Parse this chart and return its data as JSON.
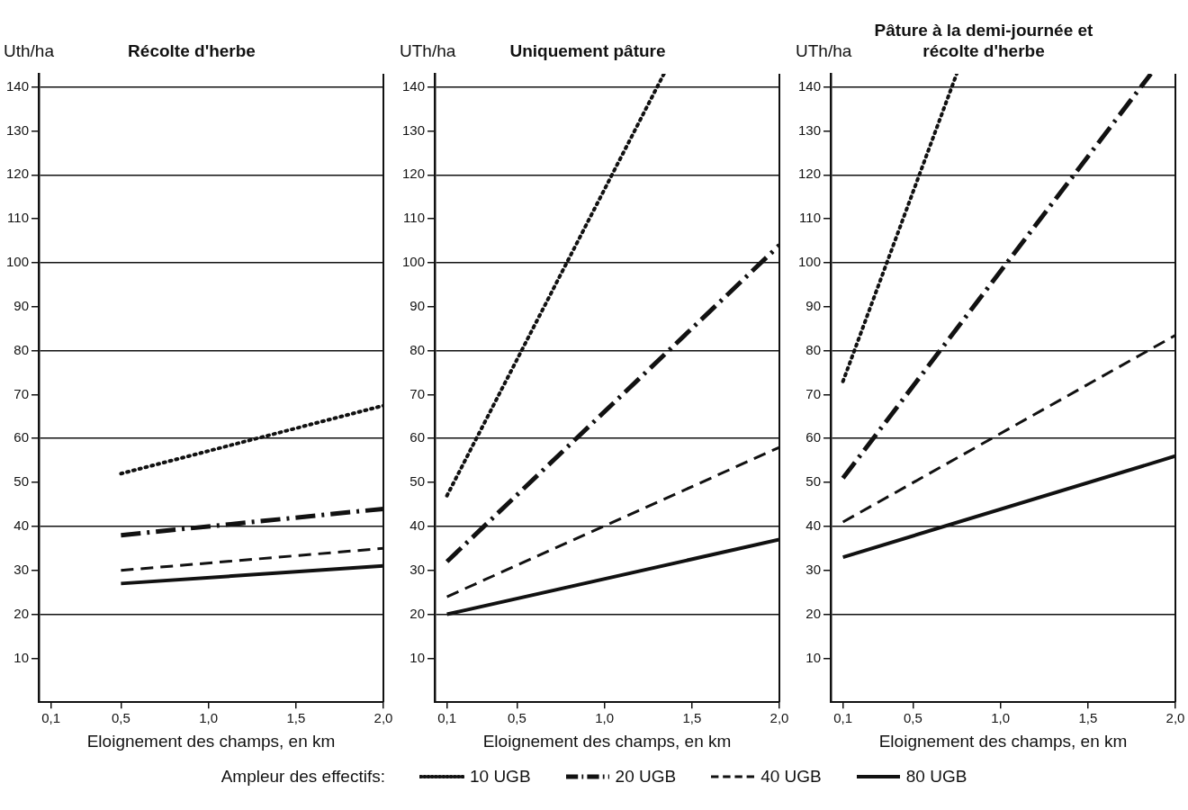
{
  "chart_data": [
    {
      "type": "line",
      "title": "Récolte d'herbe",
      "ylabel": "Uth/ha",
      "xlabel": "Eloignement des champs, en km",
      "xlim": [
        0.03,
        2.0
      ],
      "ylim": [
        0,
        143
      ],
      "xticks": [
        {
          "value": 0.1,
          "label": "0,1"
        },
        {
          "value": 0.5,
          "label": "0,5"
        },
        {
          "value": 1.0,
          "label": "1,0"
        },
        {
          "value": 1.5,
          "label": "1,5"
        },
        {
          "value": 2.0,
          "label": "2,0"
        }
      ],
      "yticks": [
        10,
        20,
        30,
        40,
        50,
        60,
        70,
        80,
        90,
        100,
        110,
        120,
        130,
        140
      ],
      "grid": "y",
      "series": [
        {
          "color": "#111111",
          "line_style": "dotted",
          "x": [
            0.5,
            2.0
          ],
          "values": [
            52,
            67.5
          ]
        },
        {
          "color": "#111111",
          "line_style": "dashdot",
          "x": [
            0.5,
            2.0
          ],
          "values": [
            38,
            44
          ]
        },
        {
          "color": "#111111",
          "line_style": "dashed",
          "x": [
            0.5,
            2.0
          ],
          "values": [
            30,
            35
          ]
        },
        {
          "color": "#111111",
          "line_style": "solid",
          "x": [
            0.5,
            2.0
          ],
          "values": [
            27,
            31
          ]
        }
      ]
    },
    {
      "type": "line",
      "title": "Uniquement pâture",
      "ylabel": "UTh/ha",
      "xlabel": "Eloignement des champs, en km",
      "xlim": [
        0.03,
        2.0
      ],
      "ylim": [
        0,
        143
      ],
      "xticks": [
        {
          "value": 0.1,
          "label": "0,1"
        },
        {
          "value": 0.5,
          "label": "0,5"
        },
        {
          "value": 1.0,
          "label": "1,0"
        },
        {
          "value": 1.5,
          "label": "1,5"
        },
        {
          "value": 2.0,
          "label": "2,0"
        }
      ],
      "yticks": [
        10,
        20,
        30,
        40,
        50,
        60,
        70,
        80,
        90,
        100,
        110,
        120,
        130,
        140
      ],
      "grid": "y",
      "legend": "bottom",
      "legend_title": "Ampleur des effectifs:",
      "series": [
        {
          "name": "10 UGB",
          "color": "#111111",
          "line_style": "dotted",
          "x": [
            0.1,
            1.34
          ],
          "values": [
            47,
            143
          ]
        },
        {
          "name": "20 UGB",
          "color": "#111111",
          "line_style": "dashdot",
          "x": [
            0.1,
            2.0
          ],
          "values": [
            32,
            104
          ]
        },
        {
          "name": "40 UGB",
          "color": "#111111",
          "line_style": "dashed",
          "x": [
            0.1,
            2.0
          ],
          "values": [
            24,
            58
          ]
        },
        {
          "name": "80 UGB",
          "color": "#111111",
          "line_style": "solid",
          "x": [
            0.1,
            2.0
          ],
          "values": [
            20,
            37
          ]
        }
      ]
    },
    {
      "type": "line",
      "title": "Pâture à la demi-journée et récolte d'herbe",
      "ylabel": "UTh/ha",
      "xlabel": "Eloignement des champs, en km",
      "xlim": [
        0.03,
        2.0
      ],
      "ylim": [
        0,
        143
      ],
      "xticks": [
        {
          "value": 0.1,
          "label": "0,1"
        },
        {
          "value": 0.5,
          "label": "0,5"
        },
        {
          "value": 1.0,
          "label": "1,0"
        },
        {
          "value": 1.5,
          "label": "1,5"
        },
        {
          "value": 2.0,
          "label": "2,0"
        }
      ],
      "yticks": [
        10,
        20,
        30,
        40,
        50,
        60,
        70,
        80,
        90,
        100,
        110,
        120,
        130,
        140
      ],
      "grid": "y",
      "series": [
        {
          "color": "#111111",
          "line_style": "dotted",
          "x": [
            0.1,
            0.75
          ],
          "values": [
            73,
            143
          ]
        },
        {
          "color": "#111111",
          "line_style": "dashdot",
          "x": [
            0.1,
            1.86
          ],
          "values": [
            51,
            143
          ]
        },
        {
          "color": "#111111",
          "line_style": "dashed",
          "x": [
            0.1,
            2.0
          ],
          "values": [
            41,
            83.5
          ]
        },
        {
          "color": "#111111",
          "line_style": "solid",
          "x": [
            0.1,
            2.0
          ],
          "values": [
            33,
            56
          ]
        }
      ]
    }
  ]
}
